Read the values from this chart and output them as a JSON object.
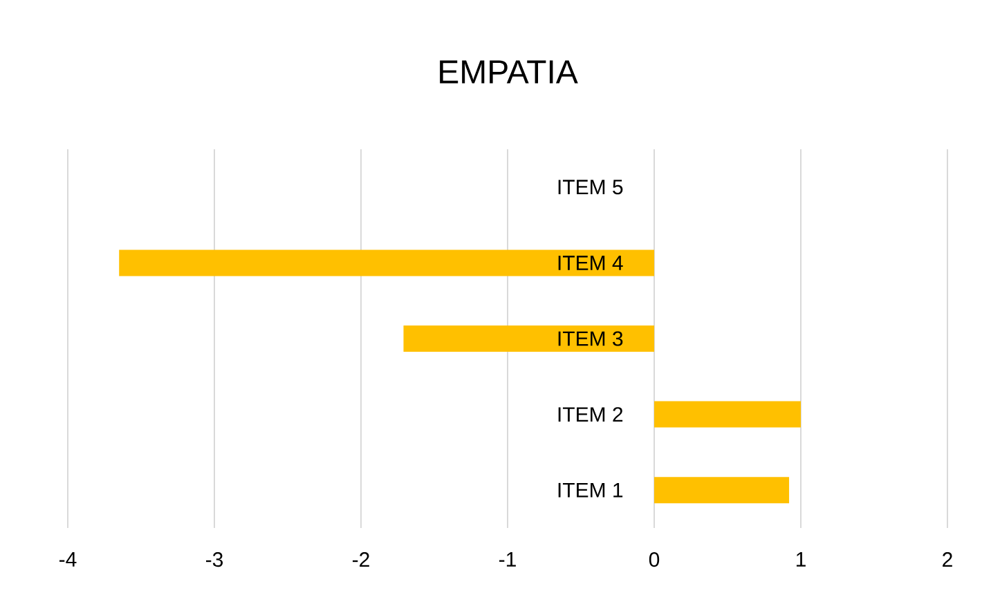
{
  "chart_data": {
    "type": "bar",
    "orientation": "horizontal",
    "title": "EMPATIA",
    "categories": [
      "ITEM 5",
      "ITEM 4",
      "ITEM 3",
      "ITEM 2",
      "ITEM 1"
    ],
    "values": [
      0,
      -3.65,
      -1.71,
      1.0,
      0.92
    ],
    "color": "#ffc000",
    "xlim": [
      -4,
      2
    ],
    "xticks": [
      -4,
      -3,
      -2,
      -1,
      0,
      1,
      2
    ],
    "grid": "x"
  }
}
